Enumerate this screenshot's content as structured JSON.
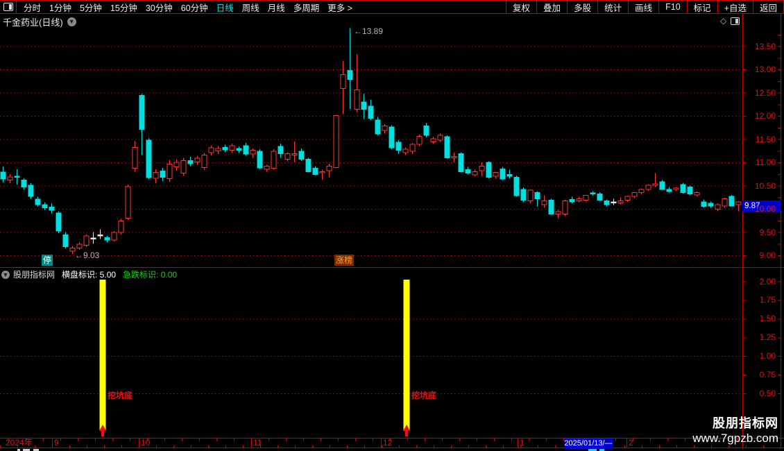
{
  "toolbar": {
    "period_tabs": [
      {
        "label": "分时"
      },
      {
        "label": "1分钟"
      },
      {
        "label": "5分钟"
      },
      {
        "label": "15分钟"
      },
      {
        "label": "30分钟"
      },
      {
        "label": "60分钟"
      },
      {
        "label": "日线",
        "active": true
      },
      {
        "label": "周线"
      },
      {
        "label": "月线"
      },
      {
        "label": "多周期"
      },
      {
        "label": "更多 >"
      }
    ],
    "actions": [
      "复权",
      "叠加",
      "多股",
      "统计",
      "画线",
      "F10",
      "标记",
      "+自选",
      "返回"
    ]
  },
  "chart_header": {
    "title": "千金药业(日线)"
  },
  "chart_data": {
    "type": "candlestick",
    "title": "千金药业(日线)",
    "period": "日线",
    "y_axis": {
      "min": 8.75,
      "max": 13.9,
      "tick_step": 0.5,
      "ticks": [
        "13.50",
        "13.00",
        "12.50",
        "12.00",
        "11.50",
        "11.00",
        "10.50",
        "10.00",
        "9.50",
        "9.00"
      ],
      "grid": "dotted-red"
    },
    "price_marker": {
      "value": "9.87"
    },
    "high_annotation": {
      "text": "←13.89",
      "value": 13.89,
      "candle_index": 50
    },
    "low_annotation": {
      "text": "←9.03",
      "value": 9.03,
      "candle_index": 10
    },
    "event_badges": [
      {
        "text": "停",
        "x": 60,
        "bg": "#008a8a",
        "fg": "#ffffff"
      },
      {
        "text": "涨榜",
        "x": 482,
        "bg": "#7a2e00",
        "fg": "#ffa028"
      }
    ],
    "x_axis": {
      "year_label": "2024年",
      "month_ticks": [
        {
          "label": "9",
          "x": 75
        },
        {
          "label": "10",
          "x": 200
        },
        {
          "label": "11",
          "x": 362
        },
        {
          "label": "12",
          "x": 549
        },
        {
          "label": "1",
          "x": 746
        },
        {
          "label": "2",
          "x": 903
        }
      ],
      "date_marker": {
        "text": "2025/01/13/—",
        "x": 813,
        "w": 70
      }
    },
    "candles": [
      [
        10.79,
        10.91,
        10.57,
        10.64
      ],
      [
        10.62,
        10.75,
        10.55,
        10.69
      ],
      [
        10.7,
        10.85,
        10.52,
        10.68
      ],
      [
        10.62,
        10.66,
        10.42,
        10.47
      ],
      [
        10.51,
        10.55,
        10.22,
        10.27
      ],
      [
        10.21,
        10.26,
        10.05,
        10.09
      ],
      [
        10.09,
        10.14,
        9.98,
        10.02
      ],
      [
        10.04,
        10.12,
        9.9,
        9.97
      ],
      [
        9.91,
        9.95,
        9.48,
        9.52
      ],
      [
        9.44,
        9.5,
        9.15,
        9.19
      ],
      [
        9.09,
        9.2,
        9.03,
        9.16
      ],
      [
        9.16,
        9.28,
        9.12,
        9.24
      ],
      [
        9.22,
        9.45,
        9.18,
        9.42
      ],
      [
        9.37,
        9.5,
        9.25,
        9.37
      ],
      [
        9.44,
        9.56,
        9.35,
        9.44
      ],
      [
        9.38,
        9.42,
        9.28,
        9.33
      ],
      [
        9.33,
        9.52,
        9.3,
        9.49
      ],
      [
        9.49,
        9.78,
        9.45,
        9.74
      ],
      [
        9.8,
        10.52,
        9.76,
        10.48
      ],
      [
        10.87,
        11.46,
        10.8,
        11.32
      ],
      [
        12.44,
        12.48,
        11.16,
        11.71
      ],
      [
        11.48,
        11.52,
        10.64,
        10.67
      ],
      [
        10.66,
        10.85,
        10.55,
        10.78
      ],
      [
        10.81,
        10.88,
        10.6,
        10.68
      ],
      [
        10.65,
        11.05,
        10.58,
        10.96
      ],
      [
        10.9,
        11.06,
        10.82,
        11.0
      ],
      [
        10.77,
        11.1,
        10.72,
        11.04
      ],
      [
        11.04,
        11.12,
        10.92,
        10.97
      ],
      [
        11.01,
        11.14,
        10.95,
        11.09
      ],
      [
        10.89,
        11.2,
        10.84,
        11.16
      ],
      [
        11.21,
        11.36,
        11.15,
        11.31
      ],
      [
        11.25,
        11.35,
        11.18,
        11.3
      ],
      [
        11.32,
        11.38,
        11.22,
        11.27
      ],
      [
        11.26,
        11.4,
        11.2,
        11.36
      ],
      [
        11.3,
        11.34,
        11.2,
        11.26
      ],
      [
        11.36,
        11.42,
        11.14,
        11.18
      ],
      [
        11.18,
        11.3,
        11.1,
        11.26
      ],
      [
        11.24,
        11.28,
        10.85,
        10.88
      ],
      [
        10.85,
        10.95,
        10.8,
        10.92
      ],
      [
        10.87,
        11.28,
        10.84,
        11.24
      ],
      [
        11.34,
        11.4,
        11.1,
        11.19
      ],
      [
        11.07,
        11.22,
        11.02,
        11.19
      ],
      [
        11.16,
        11.45,
        11.0,
        11.19
      ],
      [
        11.24,
        11.3,
        11.03,
        11.07
      ],
      [
        11.07,
        11.1,
        10.78,
        10.8
      ],
      [
        10.87,
        10.92,
        10.72,
        10.74
      ],
      [
        10.78,
        10.84,
        10.63,
        10.8
      ],
      [
        10.82,
        10.97,
        10.68,
        10.92
      ],
      [
        10.89,
        12.01,
        10.87,
        12.01
      ],
      [
        12.59,
        13.19,
        12.04,
        12.89
      ],
      [
        12.98,
        13.89,
        12.15,
        12.78
      ],
      [
        12.14,
        13.33,
        12.08,
        12.56
      ],
      [
        12.3,
        12.48,
        11.93,
        12.14
      ],
      [
        12.21,
        12.35,
        11.91,
        11.95
      ],
      [
        11.91,
        11.98,
        11.58,
        11.61
      ],
      [
        11.69,
        11.82,
        11.62,
        11.78
      ],
      [
        11.76,
        11.8,
        11.28,
        11.31
      ],
      [
        11.43,
        11.48,
        11.19,
        11.26
      ],
      [
        11.21,
        11.32,
        11.16,
        11.28
      ],
      [
        11.24,
        11.42,
        11.18,
        11.39
      ],
      [
        11.39,
        11.6,
        11.35,
        11.56
      ],
      [
        11.78,
        11.85,
        11.54,
        11.58
      ],
      [
        11.44,
        11.55,
        11.4,
        11.51
      ],
      [
        11.48,
        11.62,
        11.44,
        11.58
      ],
      [
        11.55,
        11.58,
        11.08,
        11.1
      ],
      [
        11.1,
        11.22,
        11.0,
        11.13
      ],
      [
        11.19,
        11.22,
        10.78,
        10.8
      ],
      [
        10.84,
        10.9,
        10.74,
        10.77
      ],
      [
        10.73,
        10.84,
        10.7,
        10.8
      ],
      [
        10.82,
        11.0,
        10.7,
        10.92
      ],
      [
        11.0,
        11.02,
        10.66,
        10.68
      ],
      [
        10.7,
        10.8,
        10.66,
        10.78
      ],
      [
        10.86,
        10.9,
        10.62,
        10.64
      ],
      [
        10.74,
        10.84,
        10.66,
        10.7
      ],
      [
        10.68,
        10.72,
        10.26,
        10.28
      ],
      [
        10.42,
        10.46,
        10.15,
        10.19
      ],
      [
        10.17,
        10.42,
        10.12,
        10.4
      ],
      [
        10.35,
        10.38,
        10.05,
        10.22
      ],
      [
        10.09,
        10.29,
        10.02,
        10.17
      ],
      [
        10.19,
        10.22,
        9.87,
        9.89
      ],
      [
        9.89,
        9.98,
        9.8,
        9.94
      ],
      [
        9.89,
        10.2,
        9.85,
        10.17
      ],
      [
        10.2,
        10.26,
        10.12,
        10.15
      ],
      [
        10.17,
        10.26,
        10.14,
        10.22
      ],
      [
        10.19,
        10.3,
        10.16,
        10.29
      ],
      [
        10.34,
        10.38,
        10.28,
        10.32
      ],
      [
        10.32,
        10.36,
        10.17,
        10.19
      ],
      [
        10.17,
        10.2,
        10.05,
        10.09
      ],
      [
        10.15,
        10.22,
        10.08,
        10.15
      ],
      [
        10.13,
        10.25,
        10.1,
        10.17
      ],
      [
        10.19,
        10.28,
        10.15,
        10.27
      ],
      [
        10.27,
        10.36,
        10.23,
        10.35
      ],
      [
        10.35,
        10.44,
        10.31,
        10.42
      ],
      [
        10.42,
        10.53,
        10.38,
        10.51
      ],
      [
        10.51,
        10.77,
        10.47,
        10.54
      ],
      [
        10.58,
        10.62,
        10.4,
        10.42
      ],
      [
        10.42,
        10.47,
        10.35,
        10.37
      ],
      [
        10.42,
        10.47,
        10.38,
        10.45
      ],
      [
        10.52,
        10.56,
        10.33,
        10.35
      ],
      [
        10.47,
        10.5,
        10.3,
        10.32
      ],
      [
        10.3,
        10.37,
        10.26,
        10.35
      ],
      [
        10.15,
        10.2,
        10.03,
        10.05
      ],
      [
        10.12,
        10.16,
        10.02,
        10.06
      ],
      [
        9.99,
        10.12,
        9.95,
        10.09
      ],
      [
        10.06,
        10.24,
        10.02,
        10.22
      ],
      [
        10.27,
        10.3,
        10.05,
        10.06
      ],
      [
        10.09,
        10.17,
        9.95,
        10.15
      ]
    ]
  },
  "indicator_panel": {
    "source_label": "股朋指标网",
    "readouts": [
      {
        "label": "横盘标识",
        "value": "5.00",
        "color": "#ffffff"
      },
      {
        "label": "急跌标识",
        "value": "0.00",
        "color": "#00dd00"
      }
    ],
    "y_ticks": [
      "2.00",
      "1.75",
      "1.50",
      "1.25",
      "1.00",
      "0.75",
      "0.50"
    ],
    "grid_values": [
      1.5,
      1.0,
      0.5
    ],
    "signals": [
      {
        "x": 148,
        "label": "挖坑底"
      },
      {
        "x": 586,
        "label": "挖坑底"
      }
    ],
    "bar_color": "#ffff00",
    "signal_text_color": "#ee1111"
  },
  "watermark": {
    "line1": "股朋指标网",
    "line2": "www.7gpzb.com"
  },
  "colors": {
    "up": "#ff3434",
    "down": "#00dfdf",
    "doji": "#e8e8e8",
    "grid": "#bf0000",
    "frame": "#cc0000",
    "axis_text": "#e01010",
    "marker_blue": "#0000cc",
    "accent": "#00e5e5",
    "signal_yellow": "#ffff00",
    "green": "#00dd00"
  }
}
